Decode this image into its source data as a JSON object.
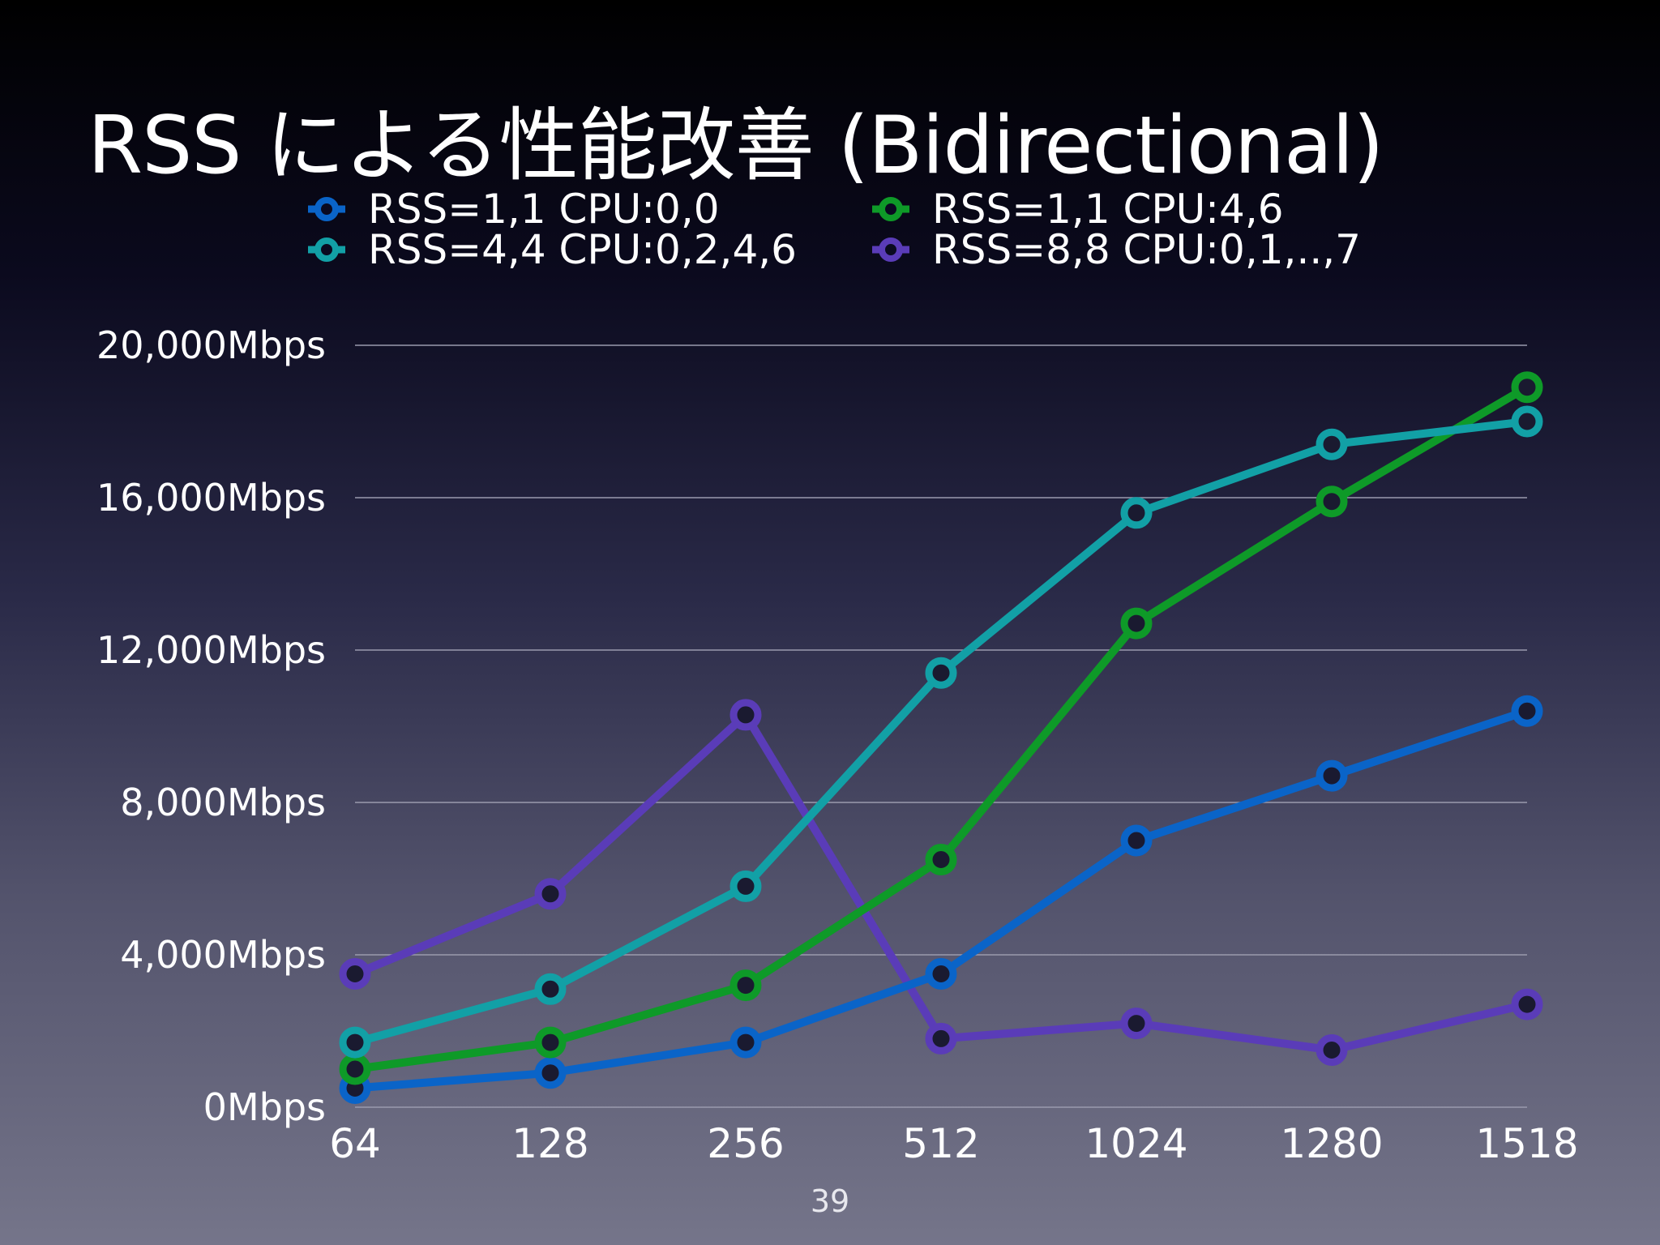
{
  "slide": {
    "title": "RSS による性能改善 (Bidirectional)",
    "page_number": "39"
  },
  "chart_data": {
    "type": "line",
    "title": "",
    "xlabel": "",
    "ylabel": "",
    "categories": [
      "64",
      "128",
      "256",
      "512",
      "1024",
      "1280",
      "1518"
    ],
    "y_ticks": [
      "0Mbps",
      "4,000Mbps",
      "8,000Mbps",
      "12,000Mbps",
      "16,000Mbps",
      "20,000Mbps"
    ],
    "ylim": [
      0,
      20000
    ],
    "grid": true,
    "legend_position": "top",
    "series": [
      {
        "name": "RSS=1,1 CPU:0,0",
        "color": "#0a64c8",
        "values": [
          500,
          900,
          1700,
          3500,
          7000,
          8700,
          10400
        ]
      },
      {
        "name": "RSS=1,1 CPU:4,6",
        "color": "#0e9a28",
        "values": [
          1000,
          1700,
          3200,
          6500,
          12700,
          15900,
          18900
        ]
      },
      {
        "name": "RSS=4,4 CPU:0,2,4,6",
        "color": "#12a0a6",
        "values": [
          1700,
          3100,
          5800,
          11400,
          15600,
          17400,
          18000
        ]
      },
      {
        "name": "RSS=8,8 CPU:0,1,..,7",
        "color": "#5a3cb8",
        "values": [
          3500,
          5600,
          10300,
          1800,
          2200,
          1500,
          2700
        ]
      }
    ]
  }
}
